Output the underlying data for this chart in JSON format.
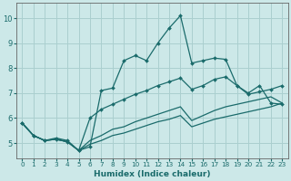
{
  "xlabel": "Humidex (Indice chaleur)",
  "x_ticks": [
    0,
    1,
    2,
    3,
    4,
    5,
    6,
    7,
    8,
    9,
    10,
    11,
    12,
    13,
    14,
    15,
    16,
    17,
    18,
    19,
    20,
    21,
    22,
    23
  ],
  "ylim": [
    4.4,
    10.6
  ],
  "xlim": [
    -0.5,
    23.5
  ],
  "yticks": [
    5,
    6,
    7,
    8,
    9,
    10
  ],
  "background_color": "#cce8e8",
  "grid_color": "#aacfcf",
  "line_color": "#1a6b6b",
  "line1_x": [
    0,
    1,
    2,
    3,
    4,
    5,
    6,
    7,
    8,
    9,
    10,
    11,
    12,
    13,
    14,
    15,
    16,
    17,
    18,
    19,
    20,
    21,
    22,
    23
  ],
  "line1_y": [
    5.8,
    5.3,
    5.1,
    5.2,
    5.1,
    4.7,
    4.85,
    7.1,
    7.2,
    8.3,
    8.5,
    8.3,
    9.0,
    9.6,
    10.1,
    8.2,
    8.3,
    8.4,
    8.35,
    7.3,
    7.0,
    7.3,
    6.6,
    6.55
  ],
  "line2_x": [
    0,
    1,
    2,
    3,
    4,
    5,
    6,
    7,
    8,
    9,
    10,
    11,
    12,
    13,
    14,
    15,
    16,
    17,
    18,
    19,
    20,
    21,
    22,
    23
  ],
  "line2_y": [
    5.8,
    5.3,
    5.1,
    5.15,
    5.05,
    4.7,
    6.0,
    6.35,
    6.55,
    6.75,
    6.95,
    7.1,
    7.3,
    7.45,
    7.6,
    7.15,
    7.3,
    7.55,
    7.65,
    7.3,
    6.95,
    7.05,
    7.15,
    7.3
  ],
  "line3_x": [
    0,
    1,
    2,
    3,
    4,
    5,
    6,
    7,
    8,
    9,
    10,
    11,
    12,
    13,
    14,
    15,
    16,
    17,
    18,
    19,
    20,
    21,
    22,
    23
  ],
  "line3_y": [
    5.8,
    5.3,
    5.1,
    5.15,
    5.05,
    4.7,
    5.1,
    5.3,
    5.55,
    5.65,
    5.85,
    6.0,
    6.15,
    6.3,
    6.45,
    5.9,
    6.1,
    6.3,
    6.45,
    6.55,
    6.65,
    6.75,
    6.85,
    6.6
  ],
  "line4_x": [
    0,
    1,
    2,
    3,
    4,
    5,
    6,
    7,
    8,
    9,
    10,
    11,
    12,
    13,
    14,
    15,
    16,
    17,
    18,
    19,
    20,
    21,
    22,
    23
  ],
  "line4_y": [
    5.8,
    5.3,
    5.1,
    5.15,
    5.05,
    4.7,
    4.95,
    5.1,
    5.3,
    5.4,
    5.55,
    5.7,
    5.85,
    5.95,
    6.1,
    5.65,
    5.8,
    5.95,
    6.05,
    6.15,
    6.25,
    6.35,
    6.45,
    6.6
  ]
}
